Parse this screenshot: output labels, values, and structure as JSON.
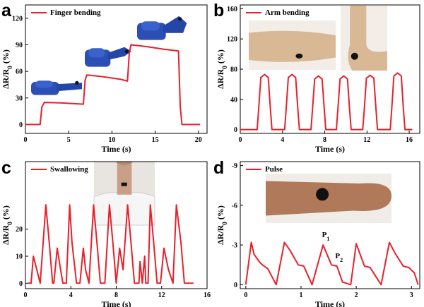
{
  "colors": {
    "line": "#e8202a",
    "axis": "#000000"
  },
  "chart_data": [
    {
      "panel": "a",
      "type": "line",
      "xlabel": "Time (s)",
      "ylabel": "ΔR/R0 (%)",
      "xlim": [
        0,
        21
      ],
      "ylim": [
        -10,
        135
      ],
      "xticks": [
        0,
        5,
        10,
        15,
        20
      ],
      "yticks": [
        0,
        30,
        60,
        90,
        120
      ],
      "series": [
        {
          "name": "Finger bending",
          "x": [
            0,
            1.7,
            1.9,
            2.2,
            4,
            6.7,
            6.9,
            7.1,
            9,
            11,
            11.8,
            12,
            12.2,
            14,
            16,
            17.7,
            17.9,
            18.1,
            20.2
          ],
          "y": [
            0,
            0,
            20,
            25,
            24.5,
            23,
            50,
            56,
            54,
            51,
            49,
            80,
            90,
            88,
            85,
            83,
            20,
            0,
            0
          ]
        }
      ],
      "images": [
        "finger-photo-straight",
        "finger-photo-half-bent",
        "finger-photo-bent"
      ]
    },
    {
      "panel": "b",
      "type": "line",
      "xlabel": "Time (s)",
      "ylabel": "ΔR/R0 (%)",
      "xlim": [
        0,
        17
      ],
      "ylim": [
        -5,
        165
      ],
      "xticks": [
        0,
        4,
        8,
        12,
        16
      ],
      "yticks": [
        0,
        40,
        80,
        120,
        160
      ],
      "series": [
        {
          "name": "Arm bending",
          "peak_centers": [
            2.3,
            4.9,
            7.4,
            9.8,
            12.3,
            14.9
          ],
          "peak_values": [
            73,
            73,
            71,
            71,
            72,
            75
          ]
        }
      ],
      "images": [
        "arm-photo-straight",
        "arm-photo-bent"
      ]
    },
    {
      "panel": "c",
      "type": "line",
      "xlabel": "Time (s)",
      "ylabel": "ΔR/R0 (%)",
      "xlim": [
        0,
        16
      ],
      "ylim": [
        -2,
        45
      ],
      "xticks": [
        0,
        4,
        8,
        12,
        16
      ],
      "yticks": [
        0,
        10,
        20
      ],
      "series": [
        {
          "name": "Swallowing",
          "x": [
            0.2,
            0.5,
            0.7,
            1.0,
            1.3,
            1.8,
            2.1,
            2.4,
            2.5,
            2.8,
            3.1,
            3.3,
            3.6,
            3.9,
            4.1,
            4.5,
            4.8,
            5.1,
            5.3,
            5.6,
            6.0,
            6.3,
            6.6,
            7.0,
            7.4,
            7.7,
            8.0,
            8.3,
            8.6,
            9.0,
            9.3,
            9.6,
            10.0,
            10.1,
            10.3,
            10.5,
            10.6,
            10.8,
            11.0,
            11.3,
            11.6,
            11.9,
            12.2,
            12.6,
            13.0,
            13.3,
            13.7,
            14.0,
            14.3,
            14.6,
            14.8
          ],
          "y": [
            0,
            0,
            10,
            5,
            0,
            29,
            15,
            0,
            0,
            13,
            5,
            0,
            0,
            29,
            15,
            0,
            0,
            13,
            5,
            0,
            29,
            15,
            0,
            0,
            29,
            15,
            0,
            13,
            5,
            29,
            15,
            0,
            0,
            8,
            0,
            10,
            0,
            0,
            29,
            15,
            0,
            0,
            13,
            5,
            0,
            29,
            15,
            0,
            0,
            0,
            0
          ]
        }
      ],
      "images": [
        "neck-photo"
      ]
    },
    {
      "panel": "d",
      "type": "line",
      "xlabel": "Time (s)",
      "ylabel": "ΔR/R0 (%)",
      "xlim": [
        -0.1,
        3.15
      ],
      "ylim": [
        0.3,
        -9.3
      ],
      "xticks": [
        0,
        1,
        2,
        3
      ],
      "yticks": [
        0,
        -3,
        -6,
        -9
      ],
      "annotations": [
        {
          "text": "P",
          "sub": "1",
          "x": 1.38,
          "y": -3.6
        },
        {
          "text": "P",
          "sub": "2",
          "x": 1.62,
          "y": -2.0
        }
      ],
      "series": [
        {
          "name": "Pulse",
          "x": [
            0,
            0.1,
            0.15,
            0.25,
            0.3,
            0.4,
            0.55,
            0.7,
            0.8,
            0.95,
            1.05,
            1.2,
            1.4,
            1.55,
            1.65,
            1.75,
            1.9,
            2.0,
            2.15,
            2.25,
            2.45,
            2.6,
            2.7,
            2.85,
            2.95,
            3.05,
            3.12
          ],
          "y": [
            0,
            -3.2,
            -2.3,
            -1.7,
            -1.5,
            -1.2,
            0,
            -3.2,
            -2.6,
            -1.5,
            -1.4,
            0,
            -3.0,
            -1.5,
            -1.4,
            -0.2,
            0,
            -3.1,
            -1.4,
            -1.3,
            0,
            -3.2,
            -2.4,
            -1.4,
            -1.3,
            -0.9,
            0
          ]
        }
      ],
      "images": [
        "wrist-photo"
      ]
    }
  ]
}
